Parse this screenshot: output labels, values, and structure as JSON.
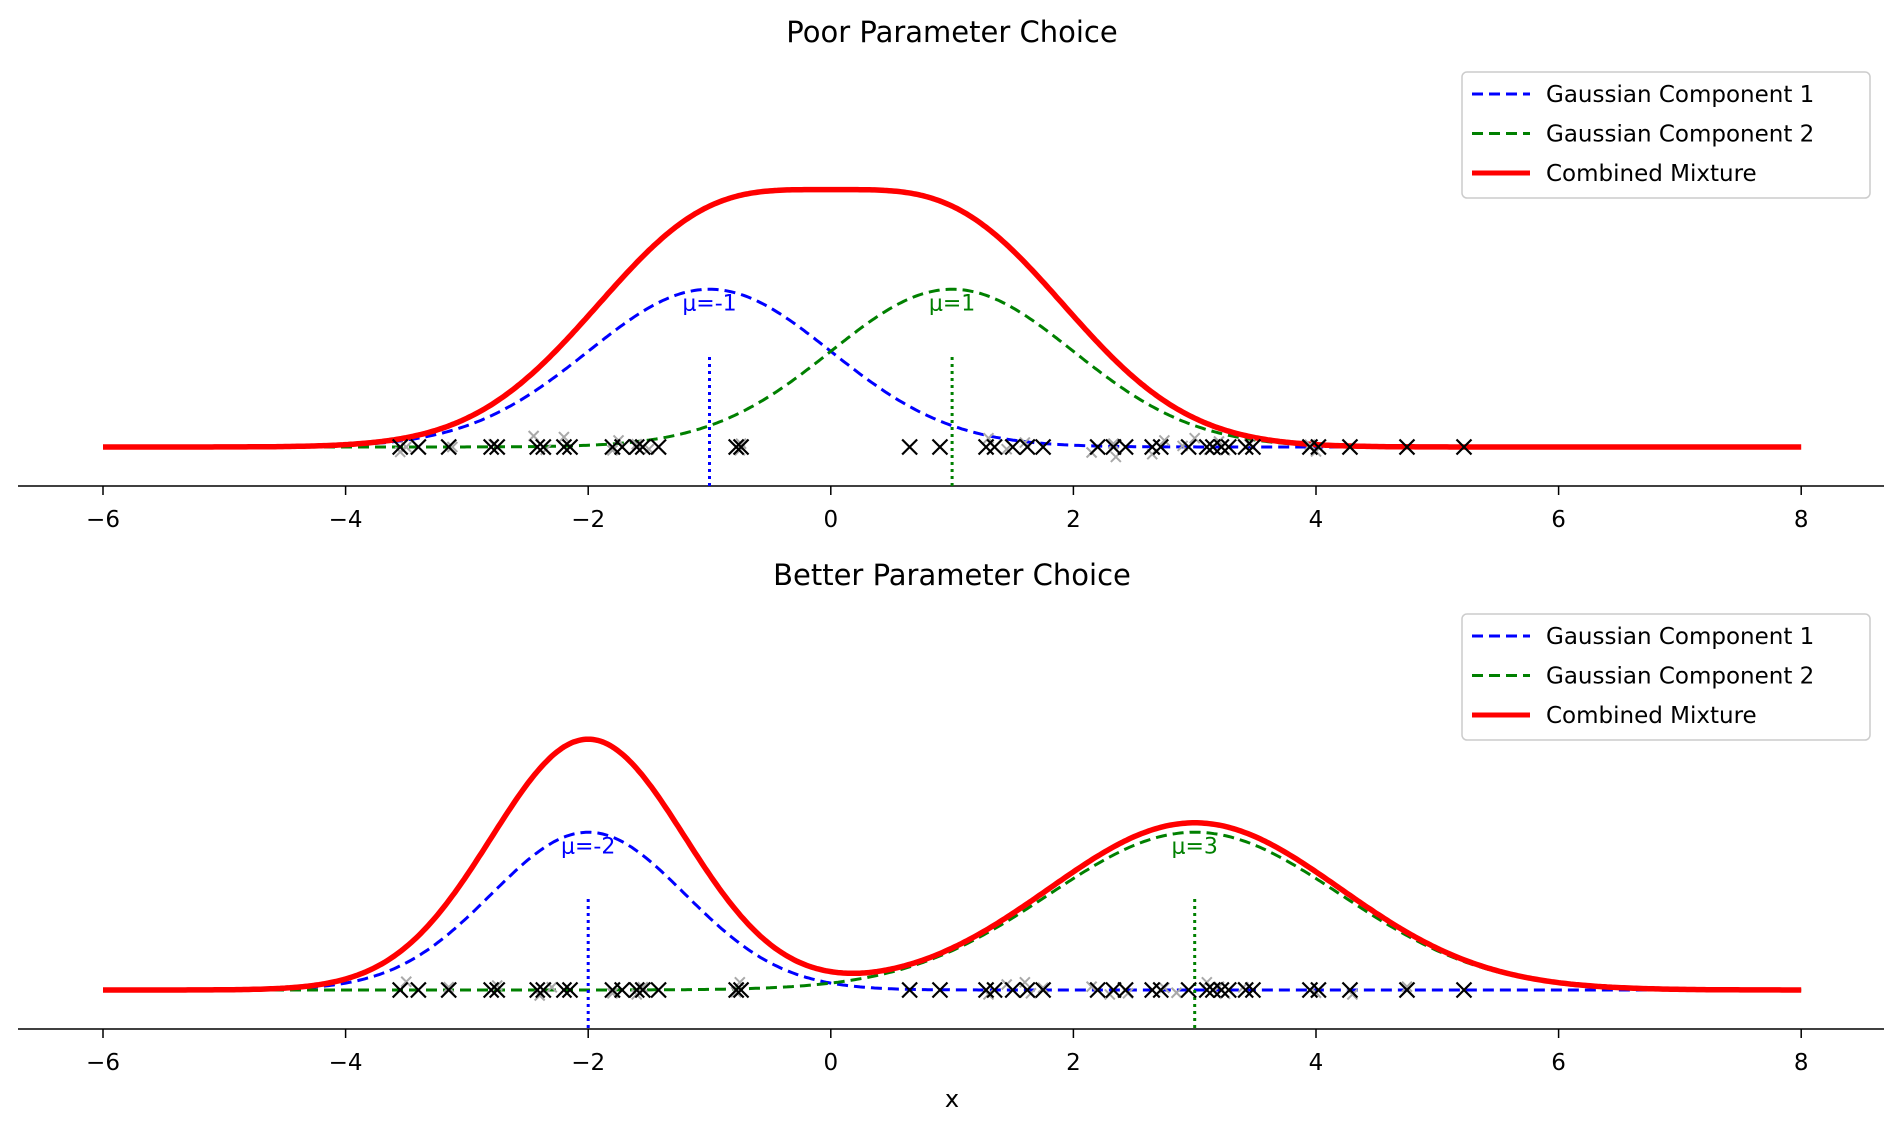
{
  "chart_data": [
    {
      "type": "line",
      "title": "Poor Parameter Choice",
      "xlabel": "",
      "ylabel": "",
      "xlim": [
        -7,
        8.7
      ],
      "xticks": [
        -6,
        -4,
        -2,
        0,
        2,
        4,
        6,
        8
      ],
      "tick_labels": [
        "−6",
        "−4",
        "−2",
        "0",
        "2",
        "4",
        "6",
        "8"
      ],
      "grid": false,
      "legend_position": "top-right",
      "components": [
        {
          "name": "Gaussian Component 1",
          "mu": -1,
          "sigma": 1,
          "color": "#0000ff",
          "style": "dashed",
          "mean_label": "μ=-1"
        },
        {
          "name": "Gaussian Component 2",
          "mu": 1,
          "sigma": 1,
          "color": "#008000",
          "style": "dashed",
          "mean_label": "μ=1"
        }
      ],
      "series": [
        {
          "name": "Gaussian Component 1",
          "color": "#0000ff",
          "style": "dashed"
        },
        {
          "name": "Gaussian Component 2",
          "color": "#008000",
          "style": "dashed"
        },
        {
          "name": "Combined Mixture",
          "color": "#ff0000",
          "style": "solid"
        }
      ],
      "data_points": [
        -3.55,
        -3.4,
        -3.15,
        -2.8,
        -2.75,
        -2.42,
        -2.37,
        -2.2,
        -2.15,
        -1.8,
        -1.72,
        -1.6,
        -1.55,
        -1.42,
        -0.78,
        -0.74,
        0.65,
        0.9,
        1.28,
        1.35,
        1.5,
        1.62,
        1.75,
        2.2,
        2.33,
        2.43,
        2.65,
        2.72,
        2.95,
        3.1,
        3.15,
        3.22,
        3.28,
        3.42,
        3.48,
        3.95,
        4.02,
        4.28,
        4.75,
        5.22
      ],
      "jitter_points": [
        [
          -3.55,
          -0.09
        ],
        [
          -3.5,
          0.0
        ],
        [
          -3.12,
          0.0
        ],
        [
          -2.78,
          0.05
        ],
        [
          -2.45,
          0.2
        ],
        [
          -2.35,
          -0.05
        ],
        [
          -2.2,
          0.18
        ],
        [
          -1.8,
          -0.06
        ],
        [
          -1.75,
          0.12
        ],
        [
          -1.6,
          0.05
        ],
        [
          -1.5,
          -0.04
        ],
        [
          -0.75,
          -0.06
        ],
        [
          -0.74,
          0.06
        ],
        [
          1.3,
          0.16
        ],
        [
          1.45,
          -0.04
        ],
        [
          1.6,
          0.08
        ],
        [
          2.15,
          -0.1
        ],
        [
          2.33,
          0.06
        ],
        [
          2.35,
          -0.18
        ],
        [
          2.65,
          -0.13
        ],
        [
          2.75,
          0.12
        ],
        [
          2.9,
          0.02
        ],
        [
          3.0,
          0.16
        ],
        [
          3.12,
          -0.05
        ],
        [
          3.2,
          0.1
        ],
        [
          3.25,
          -0.06
        ],
        [
          3.45,
          0.05
        ],
        [
          3.95,
          0.04
        ],
        [
          4.0,
          -0.08
        ]
      ]
    },
    {
      "type": "line",
      "title": "Better Parameter Choice",
      "xlabel": "x",
      "ylabel": "",
      "xlim": [
        -7,
        8.7
      ],
      "xticks": [
        -6,
        -4,
        -2,
        0,
        2,
        4,
        6,
        8
      ],
      "tick_labels": [
        "−6",
        "−4",
        "−2",
        "0",
        "2",
        "4",
        "6",
        "8"
      ],
      "grid": false,
      "legend_position": "top-right",
      "components": [
        {
          "name": "Gaussian Component 1",
          "mu": -2,
          "sigma": 0.8,
          "color": "#0000ff",
          "style": "dashed",
          "mean_label": "μ=-2"
        },
        {
          "name": "Gaussian Component 2",
          "mu": 3,
          "sigma": 1.2,
          "color": "#008000",
          "style": "dashed",
          "mean_label": "μ=3"
        }
      ],
      "series": [
        {
          "name": "Gaussian Component 1",
          "color": "#0000ff",
          "style": "dashed"
        },
        {
          "name": "Gaussian Component 2",
          "color": "#008000",
          "style": "dashed"
        },
        {
          "name": "Combined Mixture",
          "color": "#ff0000",
          "style": "solid"
        }
      ],
      "data_points": [
        -3.55,
        -3.4,
        -3.15,
        -2.8,
        -2.75,
        -2.42,
        -2.37,
        -2.2,
        -2.15,
        -1.8,
        -1.72,
        -1.6,
        -1.55,
        -1.42,
        -0.78,
        -0.74,
        0.65,
        0.9,
        1.28,
        1.35,
        1.5,
        1.62,
        1.75,
        2.2,
        2.33,
        2.43,
        2.65,
        2.72,
        2.95,
        3.1,
        3.15,
        3.22,
        3.28,
        3.42,
        3.48,
        3.95,
        4.02,
        4.28,
        4.75,
        5.22
      ],
      "jitter_points": [
        [
          -3.5,
          0.15
        ],
        [
          -3.15,
          0.05
        ],
        [
          -2.75,
          0.08
        ],
        [
          -2.4,
          -0.1
        ],
        [
          -2.3,
          0.05
        ],
        [
          -1.8,
          -0.06
        ],
        [
          -1.6,
          -0.08
        ],
        [
          -1.55,
          0.05
        ],
        [
          -0.75,
          0.14
        ],
        [
          -0.78,
          -0.04
        ],
        [
          1.3,
          -0.08
        ],
        [
          1.45,
          0.1
        ],
        [
          1.6,
          0.14
        ],
        [
          1.65,
          -0.06
        ],
        [
          1.75,
          0.04
        ],
        [
          2.15,
          0.06
        ],
        [
          2.3,
          -0.08
        ],
        [
          2.45,
          -0.06
        ],
        [
          2.75,
          0.04
        ],
        [
          2.85,
          -0.05
        ],
        [
          3.1,
          0.14
        ],
        [
          3.2,
          0.06
        ],
        [
          3.25,
          -0.07
        ],
        [
          3.4,
          0.05
        ],
        [
          4.0,
          -0.05
        ],
        [
          4.3,
          -0.08
        ],
        [
          4.75,
          0.06
        ]
      ]
    }
  ]
}
